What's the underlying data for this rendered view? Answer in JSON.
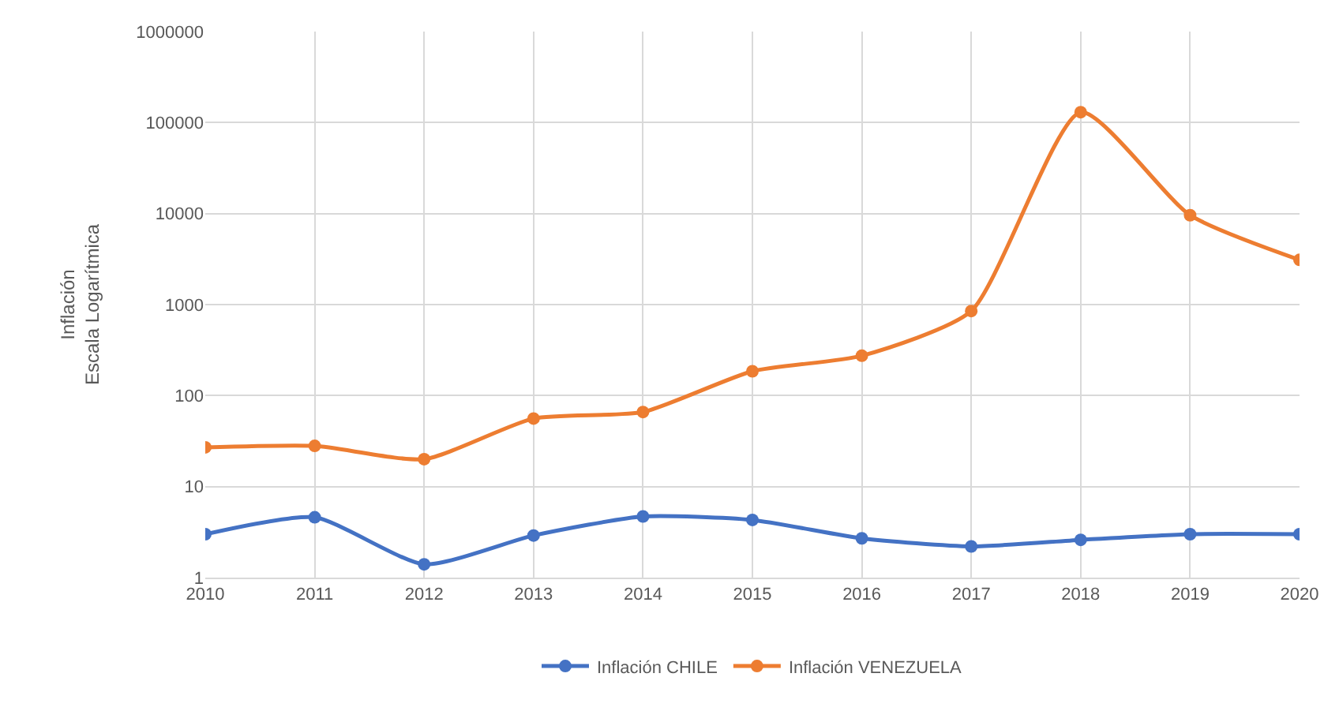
{
  "chart_data": {
    "type": "line",
    "ylabel": "Inflación\nEscala Logarítmica",
    "x": [
      2010,
      2011,
      2012,
      2013,
      2014,
      2015,
      2016,
      2017,
      2018,
      2019,
      2020
    ],
    "series": [
      {
        "name": "Inflación CHILE",
        "color": "#4472c4",
        "values": [
          3.0,
          4.6,
          1.4,
          2.9,
          4.7,
          4.3,
          2.7,
          2.2,
          2.6,
          3.0,
          3.0
        ]
      },
      {
        "name": "Inflación VENEZUELA",
        "color": "#ed7d31",
        "values": [
          27,
          28,
          20,
          56,
          66,
          185,
          274,
          850,
          130000,
          9600,
          3100
        ]
      }
    ],
    "log": true,
    "xlim": [
      2010,
      2020
    ],
    "xticks": [
      2010,
      2011,
      2012,
      2013,
      2014,
      2015,
      2016,
      2017,
      2018,
      2019,
      2020
    ],
    "ylim": [
      1,
      1000000
    ],
    "yticks": [
      1,
      10,
      100,
      1000,
      10000,
      100000,
      1000000
    ],
    "grid": true,
    "legend": "bottom",
    "marker": "circle",
    "line_style": "solid"
  }
}
